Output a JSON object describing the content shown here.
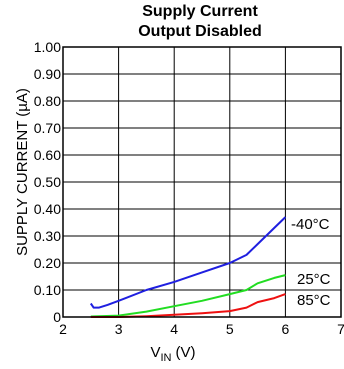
{
  "chart_data": {
    "type": "line",
    "title": "Supply Current",
    "subtitle": "Output Disabled",
    "xlabel_main": "V",
    "xlabel_sub": "IN",
    "xlabel_unit": "(V)",
    "ylabel": "SUPPLY CURRENT (µA)",
    "xlim": [
      2,
      7
    ],
    "ylim": [
      0,
      1.0
    ],
    "xticks": [
      "2",
      "3",
      "4",
      "5",
      "6",
      "7"
    ],
    "yticks": [
      "0",
      "0.10",
      "0.20",
      "0.30",
      "0.40",
      "0.50",
      "0.60",
      "0.70",
      "0.80",
      "0.90",
      "1.00"
    ],
    "grid": true,
    "series": [
      {
        "name": "-40°C",
        "color": "#1f1fe0",
        "x": [
          2.5,
          2.55,
          2.65,
          2.8,
          3.0,
          3.5,
          4.0,
          4.5,
          5.0,
          5.3,
          5.5,
          5.8,
          6.0
        ],
        "y": [
          0.05,
          0.035,
          0.035,
          0.045,
          0.06,
          0.1,
          0.13,
          0.165,
          0.2,
          0.23,
          0.27,
          0.33,
          0.37
        ]
      },
      {
        "name": "25°C",
        "color": "#22dd22",
        "x": [
          2.5,
          3.0,
          3.5,
          4.0,
          4.5,
          5.0,
          5.3,
          5.5,
          5.8,
          6.0
        ],
        "y": [
          0.002,
          0.005,
          0.02,
          0.04,
          0.06,
          0.085,
          0.1,
          0.125,
          0.145,
          0.155
        ]
      },
      {
        "name": "85°C",
        "color": "#ee1111",
        "x": [
          2.5,
          3.0,
          3.5,
          4.0,
          4.5,
          5.0,
          5.3,
          5.5,
          5.8,
          6.0
        ],
        "y": [
          0.0,
          0.0,
          0.003,
          0.008,
          0.014,
          0.022,
          0.035,
          0.055,
          0.07,
          0.085
        ]
      }
    ]
  }
}
